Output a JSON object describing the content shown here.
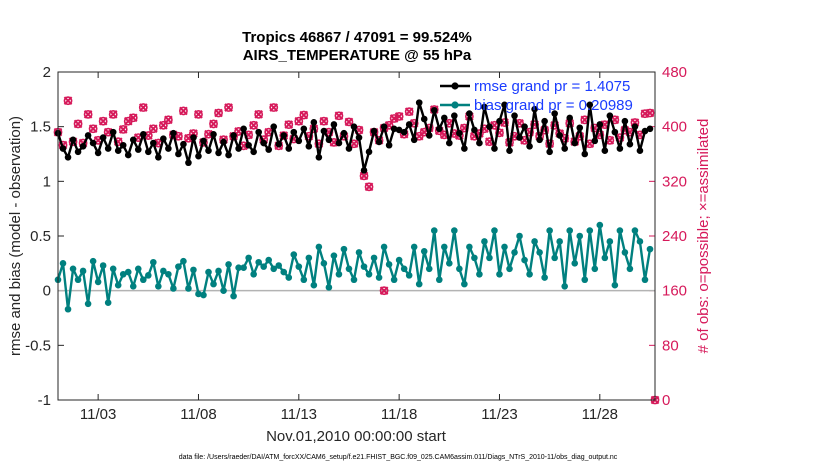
{
  "chart_data": {
    "type": "line",
    "title_line1": "Tropics 46867 / 47091 = 99.524%",
    "title_line2": "AIRS_TEMPERATURE @ 55 hPa",
    "xlabel": "Nov.01,2010 00:00:00 start",
    "ylabel_left": "rmse and bias (model - observation)",
    "ylabel_right": "# of obs: o=possible; ×=assimilated",
    "footer": "data file: /Users/raeder/DAI/ATM_forcXX/CAM6_setup/f.e21.FHIST_BGC.f09_025.CAM6assim.011/Diags_NTrS_2010-11/obs_diag_output.nc",
    "xlim": [
      1.0,
      30.75
    ],
    "ylim_left": [
      -1,
      2
    ],
    "ylim_right": [
      0,
      480
    ],
    "x_ticks": [
      3,
      8,
      13,
      18,
      23,
      28
    ],
    "x_tick_labels": [
      "11/03",
      "11/08",
      "11/13",
      "11/18",
      "11/23",
      "11/28"
    ],
    "y_ticks_left": [
      -1,
      -0.5,
      0,
      0.5,
      1,
      1.5,
      2
    ],
    "y_tick_labels_left": [
      "-1",
      "-0.5",
      "0",
      "0.5",
      "1",
      "1.5",
      "2"
    ],
    "y_ticks_right": [
      0,
      80,
      160,
      240,
      320,
      400,
      480
    ],
    "y_tick_labels_right": [
      "0",
      "80",
      "160",
      "240",
      "320",
      "400",
      "480"
    ],
    "colors": {
      "rmse": "#000000",
      "bias": "#00807f",
      "obs": "#d6195a",
      "zero_line": "#b3b3b3",
      "legend_text": "#1a3cff"
    },
    "legend": [
      {
        "name": "rmse grand pr = 1.4075",
        "color": "#000000"
      },
      {
        "name": "bias grand pr = 0.20989",
        "color": "#00807f"
      }
    ],
    "series": [
      {
        "name": "rmse",
        "axis": "left",
        "x": [
          1.0,
          1.25,
          1.5,
          1.75,
          2.0,
          2.25,
          2.5,
          2.75,
          3.0,
          3.25,
          3.5,
          3.75,
          4.0,
          4.25,
          4.5,
          4.75,
          5.0,
          5.25,
          5.5,
          5.75,
          6.0,
          6.25,
          6.5,
          6.75,
          7.0,
          7.25,
          7.5,
          7.75,
          8.0,
          8.25,
          8.5,
          8.75,
          9.0,
          9.25,
          9.5,
          9.75,
          10.0,
          10.25,
          10.5,
          10.75,
          11.0,
          11.25,
          11.5,
          11.75,
          12.0,
          12.25,
          12.5,
          12.75,
          13.0,
          13.25,
          13.5,
          13.75,
          14.0,
          14.25,
          14.5,
          14.75,
          15.0,
          15.25,
          15.5,
          15.75,
          16.0,
          16.25,
          16.5,
          16.75,
          17.0,
          17.25,
          17.5,
          17.75,
          18.0,
          18.25,
          18.5,
          18.75,
          19.0,
          19.25,
          19.5,
          19.75,
          20.0,
          20.25,
          20.5,
          20.75,
          21.0,
          21.25,
          21.5,
          21.75,
          22.0,
          22.25,
          22.5,
          22.75,
          23.0,
          23.25,
          23.5,
          23.75,
          24.0,
          24.25,
          24.5,
          24.75,
          25.0,
          25.25,
          25.5,
          25.75,
          26.0,
          26.25,
          26.5,
          26.75,
          27.0,
          27.25,
          27.5,
          27.75,
          28.0,
          28.25,
          28.5,
          28.75,
          29.0,
          29.25,
          29.5,
          29.75,
          30.0,
          30.25,
          30.5
        ],
        "y": [
          1.44,
          1.3,
          1.22,
          1.38,
          1.27,
          1.32,
          1.42,
          1.35,
          1.26,
          1.4,
          1.3,
          1.45,
          1.28,
          1.33,
          1.24,
          1.38,
          1.29,
          1.43,
          1.27,
          1.35,
          1.22,
          1.39,
          1.3,
          1.44,
          1.25,
          1.34,
          1.17,
          1.4,
          1.23,
          1.37,
          1.28,
          1.43,
          1.26,
          1.36,
          1.24,
          1.42,
          1.3,
          1.48,
          1.33,
          1.27,
          1.45,
          1.35,
          1.29,
          1.5,
          1.34,
          1.42,
          1.3,
          1.45,
          1.37,
          1.48,
          1.32,
          1.54,
          1.22,
          1.46,
          1.38,
          1.52,
          1.35,
          1.44,
          1.3,
          1.5,
          1.4,
          1.1,
          1.27,
          1.46,
          1.36,
          1.5,
          1.33,
          1.48,
          1.47,
          1.45,
          1.52,
          1.38,
          1.72,
          1.57,
          1.42,
          1.65,
          1.48,
          1.58,
          1.35,
          1.6,
          1.44,
          1.3,
          1.62,
          1.47,
          1.35,
          1.68,
          1.5,
          1.3,
          1.55,
          1.7,
          1.28,
          1.6,
          1.4,
          1.5,
          1.32,
          1.66,
          1.38,
          1.55,
          1.27,
          1.62,
          1.42,
          1.3,
          1.58,
          1.35,
          1.49,
          1.25,
          1.7,
          1.37,
          1.52,
          1.28,
          1.6,
          1.45,
          1.3,
          1.55,
          1.34,
          1.5,
          1.28,
          1.46,
          1.48
        ]
      },
      {
        "name": "bias",
        "axis": "left",
        "x": [
          1.0,
          1.25,
          1.5,
          1.75,
          2.0,
          2.25,
          2.5,
          2.75,
          3.0,
          3.25,
          3.5,
          3.75,
          4.0,
          4.25,
          4.5,
          4.75,
          5.0,
          5.25,
          5.5,
          5.75,
          6.0,
          6.25,
          6.5,
          6.75,
          7.0,
          7.25,
          7.5,
          7.75,
          8.0,
          8.25,
          8.5,
          8.75,
          9.0,
          9.25,
          9.5,
          9.75,
          10.0,
          10.25,
          10.5,
          10.75,
          11.0,
          11.25,
          11.5,
          11.75,
          12.0,
          12.25,
          12.5,
          12.75,
          13.0,
          13.25,
          13.5,
          13.75,
          14.0,
          14.25,
          14.5,
          14.75,
          15.0,
          15.25,
          15.5,
          15.75,
          16.0,
          16.25,
          16.5,
          16.75,
          17.0,
          17.25,
          17.5,
          17.75,
          18.0,
          18.25,
          18.5,
          18.75,
          19.0,
          19.25,
          19.5,
          19.75,
          20.0,
          20.25,
          20.5,
          20.75,
          21.0,
          21.25,
          21.5,
          21.75,
          22.0,
          22.25,
          22.5,
          22.75,
          23.0,
          23.25,
          23.5,
          23.75,
          24.0,
          24.25,
          24.5,
          24.75,
          25.0,
          25.25,
          25.5,
          25.75,
          26.0,
          26.25,
          26.5,
          26.75,
          27.0,
          27.25,
          27.5,
          27.75,
          28.0,
          28.25,
          28.5,
          28.75,
          29.0,
          29.25,
          29.5,
          29.75,
          30.0,
          30.25,
          30.5
        ],
        "y": [
          0.1,
          0.25,
          -0.17,
          0.2,
          0.1,
          0.18,
          -0.12,
          0.27,
          0.08,
          0.23,
          -0.11,
          0.2,
          0.05,
          0.15,
          0.17,
          0.04,
          0.2,
          0.1,
          0.14,
          0.26,
          0.04,
          0.18,
          0.15,
          0.02,
          0.22,
          0.27,
          0.02,
          0.19,
          -0.03,
          -0.04,
          0.17,
          0.06,
          0.18,
          0.0,
          0.24,
          -0.05,
          0.21,
          0.21,
          0.3,
          0.15,
          0.26,
          0.22,
          0.28,
          0.2,
          0.23,
          0.17,
          0.12,
          0.33,
          0.22,
          0.1,
          0.3,
          0.05,
          0.4,
          0.25,
          0.03,
          0.32,
          0.15,
          0.38,
          0.2,
          0.1,
          0.35,
          0.22,
          0.15,
          0.3,
          0.12,
          0.4,
          0.24,
          0.1,
          0.28,
          0.2,
          0.14,
          0.4,
          0.06,
          0.36,
          0.2,
          0.55,
          0.1,
          0.4,
          0.25,
          0.55,
          0.2,
          0.06,
          0.4,
          0.3,
          0.15,
          0.45,
          0.3,
          0.55,
          0.15,
          0.4,
          0.2,
          0.35,
          0.5,
          0.28,
          0.15,
          0.45,
          0.35,
          0.12,
          0.55,
          0.3,
          0.45,
          0.04,
          0.55,
          0.25,
          0.5,
          0.1,
          0.55,
          0.2,
          0.6,
          0.3,
          0.45,
          0.05,
          0.55,
          0.35,
          0.2,
          0.55,
          0.45,
          0.1,
          0.38
        ]
      },
      {
        "name": "obs possible",
        "axis": "right",
        "x": [
          1.0,
          1.25,
          1.5,
          1.75,
          2.0,
          2.25,
          2.5,
          2.75,
          3.0,
          3.25,
          3.5,
          3.75,
          4.0,
          4.25,
          4.5,
          4.75,
          5.0,
          5.25,
          5.5,
          5.75,
          6.0,
          6.25,
          6.5,
          6.75,
          7.0,
          7.25,
          7.5,
          7.75,
          8.0,
          8.25,
          8.5,
          8.75,
          9.0,
          9.25,
          9.5,
          9.75,
          10.0,
          10.25,
          10.5,
          10.75,
          11.0,
          11.25,
          11.5,
          11.75,
          12.0,
          12.25,
          12.5,
          12.75,
          13.0,
          13.25,
          13.5,
          13.75,
          14.0,
          14.25,
          14.5,
          14.75,
          15.0,
          15.25,
          15.5,
          15.75,
          16.0,
          16.25,
          16.5,
          16.75,
          17.0,
          17.25,
          17.5,
          17.75,
          18.0,
          18.25,
          18.5,
          18.75,
          19.0,
          19.25,
          19.5,
          19.75,
          20.0,
          20.25,
          20.5,
          20.75,
          21.0,
          21.25,
          21.5,
          21.75,
          22.0,
          22.25,
          22.5,
          22.75,
          23.0,
          23.25,
          23.5,
          23.75,
          24.0,
          24.25,
          24.5,
          24.75,
          25.0,
          25.25,
          25.5,
          25.75,
          26.0,
          26.25,
          26.5,
          26.75,
          27.0,
          27.25,
          27.5,
          27.75,
          28.0,
          28.25,
          28.5,
          28.75,
          29.0,
          29.25,
          29.5,
          29.75,
          30.0,
          30.25,
          30.5
        ],
        "y": [
          392,
          373,
          438,
          378,
          404,
          376,
          418,
          397,
          380,
          408,
          392,
          418,
          378,
          396,
          408,
          413,
          384,
          428,
          387,
          397,
          376,
          402,
          410,
          388,
          386,
          423,
          383,
          390,
          418,
          377,
          389,
          404,
          420,
          381,
          428,
          386,
          393,
          372,
          388,
          402,
          418,
          381,
          392,
          428,
          372,
          387,
          403,
          382,
          408,
          417,
          386,
          397,
          375,
          408,
          392,
          377,
          416,
          386,
          407,
          375,
          395,
          328,
          312,
          392,
          380,
          398,
          402,
          412,
          415,
          389,
          422,
          405,
          386,
          392,
          398,
          425,
          394,
          388,
          405,
          390,
          387,
          398,
          415,
          386,
          390,
          397,
          378,
          402,
          391,
          406,
          377,
          386,
          405,
          380,
          392,
          403,
          386,
          395,
          375,
          402,
          390,
          383,
          405,
          378,
          386,
          410,
          375,
          398,
          388,
          403,
          380,
          410,
          384,
          395,
          392,
          406,
          388,
          419,
          420
        ]
      },
      {
        "name": "obs assimilated",
        "axis": "right",
        "x": [
          1.0,
          1.25,
          1.5,
          1.75,
          2.0,
          2.25,
          2.5,
          2.75,
          3.0,
          3.25,
          3.5,
          3.75,
          4.0,
          4.25,
          4.5,
          4.75,
          5.0,
          5.25,
          5.5,
          5.75,
          6.0,
          6.25,
          6.5,
          6.75,
          7.0,
          7.25,
          7.5,
          7.75,
          8.0,
          8.25,
          8.5,
          8.75,
          9.0,
          9.25,
          9.5,
          9.75,
          10.0,
          10.25,
          10.5,
          10.75,
          11.0,
          11.25,
          11.5,
          11.75,
          12.0,
          12.25,
          12.5,
          12.75,
          13.0,
          13.25,
          13.5,
          13.75,
          14.0,
          14.25,
          14.5,
          14.75,
          15.0,
          15.25,
          15.5,
          15.75,
          16.0,
          16.25,
          16.5,
          16.75,
          17.0,
          17.25,
          17.5,
          17.75,
          18.0,
          18.25,
          18.5,
          18.75,
          19.0,
          19.25,
          19.5,
          19.75,
          20.0,
          20.25,
          20.5,
          20.75,
          21.0,
          21.25,
          21.5,
          21.75,
          22.0,
          22.25,
          22.5,
          22.75,
          23.0,
          23.25,
          23.5,
          23.75,
          24.0,
          24.25,
          24.5,
          24.75,
          25.0,
          25.25,
          25.5,
          25.75,
          26.0,
          26.25,
          26.5,
          26.75,
          27.0,
          27.25,
          27.5,
          27.75,
          28.0,
          28.25,
          28.5,
          28.75,
          29.0,
          29.25,
          29.5,
          29.75,
          30.0,
          30.25,
          30.5
        ],
        "y": [
          392,
          373,
          438,
          378,
          404,
          376,
          418,
          397,
          380,
          408,
          392,
          418,
          378,
          396,
          408,
          413,
          384,
          428,
          387,
          397,
          376,
          402,
          410,
          388,
          386,
          423,
          383,
          390,
          418,
          377,
          389,
          404,
          420,
          381,
          428,
          386,
          393,
          372,
          388,
          402,
          418,
          381,
          392,
          428,
          372,
          387,
          403,
          382,
          408,
          417,
          386,
          397,
          375,
          408,
          392,
          377,
          416,
          386,
          407,
          375,
          395,
          328,
          312,
          392,
          380,
          398,
          402,
          412,
          415,
          389,
          422,
          405,
          386,
          392,
          398,
          425,
          394,
          388,
          405,
          390,
          387,
          398,
          415,
          386,
          390,
          397,
          378,
          402,
          391,
          406,
          377,
          386,
          405,
          380,
          392,
          403,
          386,
          395,
          375,
          402,
          390,
          383,
          405,
          378,
          386,
          410,
          375,
          398,
          388,
          403,
          380,
          410,
          384,
          395,
          392,
          406,
          388,
          419,
          420
        ]
      }
    ],
    "extra_points": [
      {
        "name": "obs zero-count marker",
        "axis": "right",
        "x": 17.25,
        "y": 160
      },
      {
        "name": "obs end marker",
        "axis": "right",
        "x": 30.75,
        "y": 0
      }
    ]
  }
}
